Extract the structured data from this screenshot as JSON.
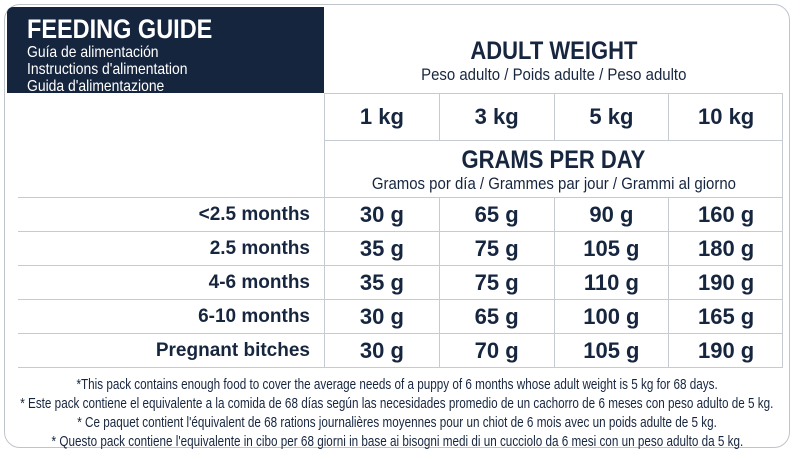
{
  "feeding_guide": {
    "title": "FEEDING GUIDE",
    "subtitles": [
      "Guía de alimentación",
      "Instructions d'alimentation",
      "Guida d'alimentazione"
    ]
  },
  "adult_weight": {
    "title": "ADULT WEIGHT",
    "subtitle": "Peso adulto / Poids adulte / Peso adulto"
  },
  "columns": [
    "1 kg",
    "3 kg",
    "5 kg",
    "10 kg"
  ],
  "grams_per_day": {
    "title": "GRAMS PER DAY",
    "subtitle": "Gramos por día / Grammes par jour / Grammi al giorno"
  },
  "rows": [
    {
      "label": "<2.5 months",
      "values": [
        "30 g",
        "65 g",
        "90 g",
        "160 g"
      ]
    },
    {
      "label": "2.5 months",
      "values": [
        "35 g",
        "75 g",
        "105 g",
        "180 g"
      ]
    },
    {
      "label": "4-6 months",
      "values": [
        "35 g",
        "75 g",
        "110 g",
        "190 g"
      ]
    },
    {
      "label": "6-10 months",
      "values": [
        "30 g",
        "65 g",
        "100 g",
        "165 g"
      ]
    },
    {
      "label": "Pregnant bitches",
      "values": [
        "30 g",
        "70 g",
        "105 g",
        "190 g"
      ]
    }
  ],
  "footnotes": [
    "*This pack contains enough food to cover the average needs of a puppy of 6 months whose adult weight is 5 kg for 68 days.",
    "* Este pack contiene el equivalente a la comida de 68 días según las necesidades promedio de un cachorro de 6 meses con peso adulto de 5 kg.",
    "* Ce paquet contient l'équivalent de 68 rations journalières moyennes pour un chiot de 6 mois avec un poids adulte de 5 kg.",
    "* Questo pack contiene l'equivalente in cibo per 68 giorni in base ai bisogni medi di un cucciolo da 6 mesi con un peso adulto da 5 kg."
  ],
  "colors": {
    "navy": "#16253e",
    "grid_line": "#c6cad1",
    "background": "#ffffff"
  },
  "chart_data": {
    "type": "table",
    "title": "FEEDING GUIDE — ADULT WEIGHT / GRAMS PER DAY",
    "columns": [
      "1 kg",
      "3 kg",
      "5 kg",
      "10 kg"
    ],
    "row_labels": [
      "<2.5 months",
      "2.5 months",
      "4-6 months",
      "6-10 months",
      "Pregnant bitches"
    ],
    "values_g": [
      [
        30,
        65,
        90,
        160
      ],
      [
        35,
        75,
        105,
        180
      ],
      [
        35,
        75,
        110,
        190
      ],
      [
        30,
        65,
        100,
        165
      ],
      [
        30,
        70,
        105,
        190
      ]
    ]
  }
}
